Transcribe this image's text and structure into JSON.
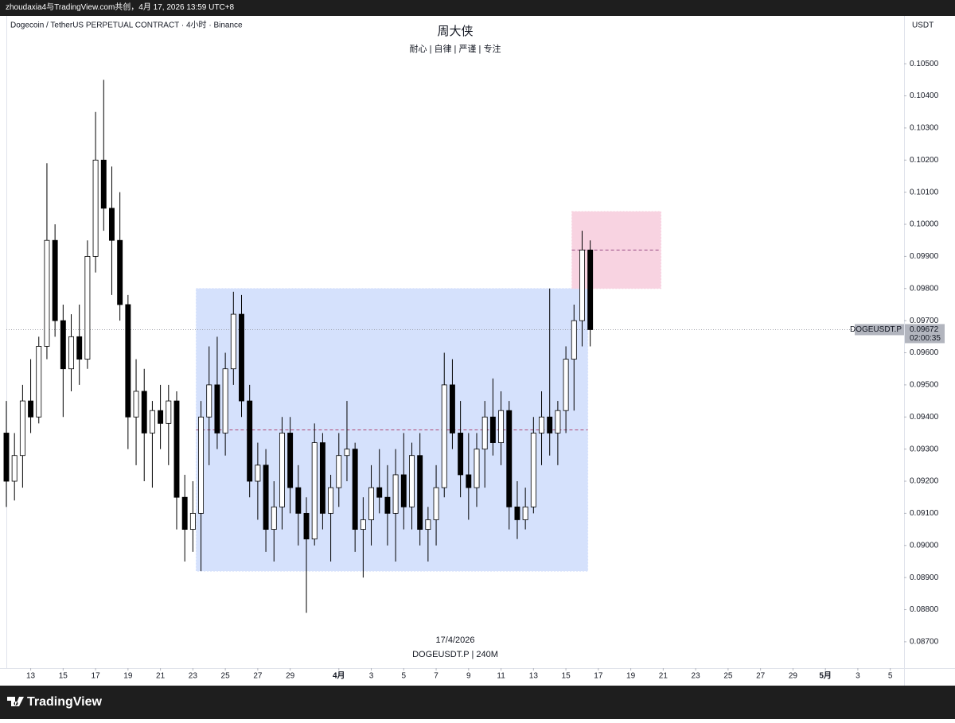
{
  "header": {
    "text": "zhoudaxia4与TradingView.com共创，4月 17, 2026 13:59 UTC+8"
  },
  "chart_data": {
    "type": "candlestick",
    "symbol": "Dogecoin / TetherUS PERPETUAL CONTRACT · 4小时 · Binance",
    "title": "周大侠",
    "subtitle": "耐心 | 自律 | 严谨 | 专注",
    "currency": "USDT",
    "watermark": {
      "date": "17/4/2026",
      "symbol": "DOGEUSDT.P | 240M"
    },
    "xlim": [
      11.5,
      66.85
    ],
    "ylim": [
      0.08618,
      0.10644
    ],
    "grid": false,
    "yticks": [
      {
        "value": 0.087,
        "label": "0.08700"
      },
      {
        "value": 0.088,
        "label": "0.08800"
      },
      {
        "value": 0.089,
        "label": "0.08900"
      },
      {
        "value": 0.09,
        "label": "0.09000"
      },
      {
        "value": 0.091,
        "label": "0.09100"
      },
      {
        "value": 0.092,
        "label": "0.09200"
      },
      {
        "value": 0.093,
        "label": "0.09300"
      },
      {
        "value": 0.094,
        "label": "0.09400"
      },
      {
        "value": 0.095,
        "label": "0.09500"
      },
      {
        "value": 0.096,
        "label": "0.09600"
      },
      {
        "value": 0.097,
        "label": "0.09700"
      },
      {
        "value": 0.098,
        "label": "0.09800"
      },
      {
        "value": 0.099,
        "label": "0.09900"
      },
      {
        "value": 0.1,
        "label": "0.10000"
      },
      {
        "value": 0.101,
        "label": "0.10100"
      },
      {
        "value": 0.102,
        "label": "0.10200"
      },
      {
        "value": 0.103,
        "label": "0.10300"
      },
      {
        "value": 0.104,
        "label": "0.10400"
      },
      {
        "value": 0.105,
        "label": "0.10500"
      }
    ],
    "xticks": [
      13,
      15,
      17,
      19,
      21,
      23,
      25,
      27,
      29,
      {
        "value": 32,
        "label": "4月"
      },
      {
        "value": 34,
        "label": "3"
      },
      {
        "value": 36,
        "label": "5"
      },
      {
        "value": 38,
        "label": "7"
      },
      {
        "value": 40,
        "label": "9"
      },
      {
        "value": 42,
        "label": "11"
      },
      {
        "value": 44,
        "label": "13"
      },
      {
        "value": 46,
        "label": "15"
      },
      {
        "value": 48,
        "label": "17"
      },
      {
        "value": 50,
        "label": "19"
      },
      {
        "value": 52,
        "label": "21"
      },
      {
        "value": 54,
        "label": "23"
      },
      {
        "value": 56,
        "label": "25"
      },
      {
        "value": 58,
        "label": "27"
      },
      {
        "value": 60,
        "label": "29"
      },
      {
        "value": 62,
        "label": "5月"
      },
      {
        "value": 64,
        "label": "3"
      },
      {
        "value": 66,
        "label": "5"
      }
    ],
    "up_color": "#ffffff",
    "down_color": "#000000",
    "wick_color": "#000000",
    "candles": [
      [
        11.5,
        0.0935,
        0.0945,
        0.0912,
        0.092
      ],
      [
        12.0,
        0.092,
        0.0935,
        0.0914,
        0.0928
      ],
      [
        12.5,
        0.0928,
        0.095,
        0.0918,
        0.0945
      ],
      [
        13.0,
        0.0945,
        0.0958,
        0.0935,
        0.094
      ],
      [
        13.5,
        0.094,
        0.0965,
        0.0938,
        0.0962
      ],
      [
        14.0,
        0.0962,
        0.1019,
        0.0958,
        0.0995
      ],
      [
        14.5,
        0.0995,
        0.1,
        0.0965,
        0.097
      ],
      [
        15.0,
        0.097,
        0.0975,
        0.094,
        0.0955
      ],
      [
        15.5,
        0.0955,
        0.0972,
        0.0948,
        0.0965
      ],
      [
        16.0,
        0.0965,
        0.0975,
        0.095,
        0.0958
      ],
      [
        16.5,
        0.0958,
        0.0995,
        0.0955,
        0.099
      ],
      [
        17.0,
        0.099,
        0.1035,
        0.0985,
        0.102
      ],
      [
        17.5,
        0.102,
        0.1045,
        0.0998,
        0.1005
      ],
      [
        18.0,
        0.1005,
        0.1018,
        0.0978,
        0.0995
      ],
      [
        18.5,
        0.0995,
        0.101,
        0.097,
        0.0975
      ],
      [
        19.0,
        0.0975,
        0.0978,
        0.093,
        0.094
      ],
      [
        19.5,
        0.094,
        0.0958,
        0.0925,
        0.0948
      ],
      [
        20.0,
        0.0948,
        0.0955,
        0.092,
        0.0935
      ],
      [
        20.5,
        0.0935,
        0.0945,
        0.0918,
        0.0942
      ],
      [
        21.0,
        0.0942,
        0.095,
        0.093,
        0.0938
      ],
      [
        21.5,
        0.0938,
        0.095,
        0.0925,
        0.0945
      ],
      [
        22.0,
        0.0945,
        0.0948,
        0.0905,
        0.0915
      ],
      [
        22.5,
        0.0915,
        0.0922,
        0.0895,
        0.0905
      ],
      [
        23.0,
        0.0905,
        0.092,
        0.0898,
        0.091
      ],
      [
        23.5,
        0.091,
        0.0945,
        0.0892,
        0.094
      ],
      [
        24.0,
        0.094,
        0.0962,
        0.0925,
        0.095
      ],
      [
        24.5,
        0.095,
        0.0965,
        0.093,
        0.0935
      ],
      [
        25.0,
        0.0935,
        0.096,
        0.0928,
        0.0955
      ],
      [
        25.5,
        0.0955,
        0.0979,
        0.095,
        0.0972
      ],
      [
        26.0,
        0.0972,
        0.0978,
        0.094,
        0.0945
      ],
      [
        26.5,
        0.0945,
        0.095,
        0.0915,
        0.092
      ],
      [
        27.0,
        0.092,
        0.0932,
        0.0908,
        0.0925
      ],
      [
        27.5,
        0.0925,
        0.093,
        0.0898,
        0.0905
      ],
      [
        28.0,
        0.0905,
        0.092,
        0.0895,
        0.0912
      ],
      [
        28.5,
        0.0912,
        0.094,
        0.0905,
        0.0935
      ],
      [
        29.0,
        0.0935,
        0.094,
        0.091,
        0.0918
      ],
      [
        29.5,
        0.0918,
        0.0925,
        0.09,
        0.091
      ],
      [
        30.0,
        0.091,
        0.0915,
        0.0879,
        0.0902
      ],
      [
        30.5,
        0.0902,
        0.0938,
        0.09,
        0.0932
      ],
      [
        31.0,
        0.0932,
        0.0935,
        0.0905,
        0.091
      ],
      [
        31.5,
        0.091,
        0.0922,
        0.0895,
        0.0918
      ],
      [
        32.0,
        0.0918,
        0.0935,
        0.0912,
        0.0928
      ],
      [
        32.5,
        0.0928,
        0.0945,
        0.092,
        0.093
      ],
      [
        33.0,
        0.093,
        0.0932,
        0.0898,
        0.0905
      ],
      [
        33.5,
        0.0905,
        0.0915,
        0.089,
        0.0908
      ],
      [
        34.0,
        0.0908,
        0.0925,
        0.09,
        0.0918
      ],
      [
        34.5,
        0.0918,
        0.093,
        0.091,
        0.0915
      ],
      [
        35.0,
        0.0915,
        0.0925,
        0.09,
        0.091
      ],
      [
        35.5,
        0.091,
        0.093,
        0.0895,
        0.0922
      ],
      [
        36.0,
        0.0922,
        0.0935,
        0.0905,
        0.0912
      ],
      [
        36.5,
        0.0912,
        0.0932,
        0.0905,
        0.0928
      ],
      [
        37.0,
        0.0928,
        0.0935,
        0.09,
        0.0905
      ],
      [
        37.5,
        0.0905,
        0.0912,
        0.0895,
        0.0908
      ],
      [
        38.0,
        0.0908,
        0.0925,
        0.09,
        0.0918
      ],
      [
        38.5,
        0.0918,
        0.096,
        0.0915,
        0.095
      ],
      [
        39.0,
        0.095,
        0.0958,
        0.093,
        0.0935
      ],
      [
        39.5,
        0.0935,
        0.0945,
        0.0915,
        0.0922
      ],
      [
        40.0,
        0.0922,
        0.0935,
        0.0908,
        0.0918
      ],
      [
        40.5,
        0.0918,
        0.0935,
        0.0912,
        0.093
      ],
      [
        41.0,
        0.093,
        0.0945,
        0.0918,
        0.094
      ],
      [
        41.5,
        0.094,
        0.0952,
        0.0928,
        0.0932
      ],
      [
        42.0,
        0.0932,
        0.0948,
        0.0925,
        0.0942
      ],
      [
        42.5,
        0.0942,
        0.0945,
        0.0905,
        0.0912
      ],
      [
        43.0,
        0.0912,
        0.092,
        0.0902,
        0.0908
      ],
      [
        43.5,
        0.0908,
        0.0918,
        0.0905,
        0.0912
      ],
      [
        44.0,
        0.0912,
        0.094,
        0.091,
        0.0935
      ],
      [
        44.5,
        0.0935,
        0.0948,
        0.0925,
        0.094
      ],
      [
        45.0,
        0.094,
        0.098,
        0.0928,
        0.0935
      ],
      [
        45.5,
        0.0935,
        0.0945,
        0.0925,
        0.0942
      ],
      [
        46.0,
        0.0942,
        0.0962,
        0.0935,
        0.0958
      ],
      [
        46.5,
        0.0958,
        0.0975,
        0.0942,
        0.097
      ],
      [
        47.0,
        0.097,
        0.0998,
        0.0962,
        0.0992
      ],
      [
        47.5,
        0.0992,
        0.0995,
        0.0962,
        0.09672
      ]
    ],
    "zones": [
      {
        "x": [
          23.2,
          47.35
        ],
        "y": [
          0.0892,
          0.098
        ],
        "color": "#d5e1fc",
        "midline_color": "#a8325e"
      },
      {
        "x": [
          46.37,
          51.86
        ],
        "y": [
          0.098,
          0.1004
        ],
        "color": "#f8d3e1",
        "midline_color": "#8a3a78"
      }
    ],
    "last_price": {
      "value": 0.09672,
      "symbol": "DOGEUSDT.P",
      "countdown": "02:00:35"
    }
  },
  "footer": {
    "logo": "TradingView"
  }
}
